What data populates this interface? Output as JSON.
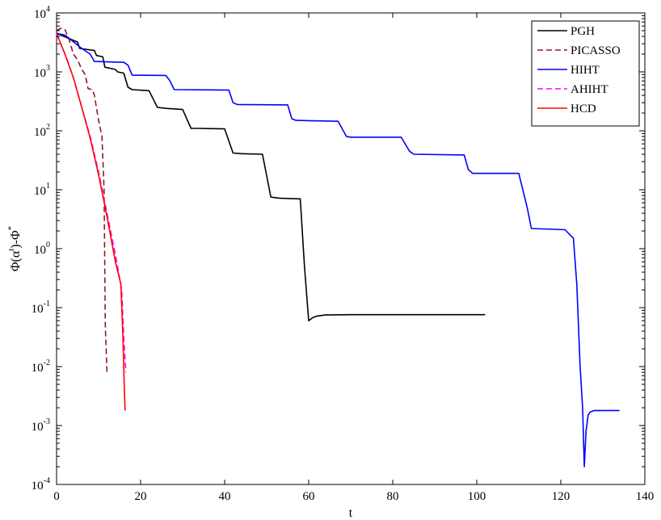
{
  "chart_data": {
    "type": "line",
    "title": "",
    "xlabel": "t",
    "ylabel": "Φ(α^t)-Φ^*",
    "y_scale": "log",
    "xlim": [
      0,
      140
    ],
    "ylim": [
      0.0001,
      10000
    ],
    "x_ticks": [
      "0",
      "20",
      "40",
      "60",
      "80",
      "100",
      "120",
      "140"
    ],
    "y_ticks": [
      {
        "base": "10",
        "exp": "4"
      },
      {
        "base": "10",
        "exp": "3"
      },
      {
        "base": "10",
        "exp": "2"
      },
      {
        "base": "10",
        "exp": "1"
      },
      {
        "base": "10",
        "exp": "0"
      },
      {
        "base": "10",
        "exp": "-1"
      },
      {
        "base": "10",
        "exp": "-2"
      },
      {
        "base": "10",
        "exp": "-3"
      },
      {
        "base": "10",
        "exp": "-4"
      }
    ],
    "legend_position": "top-right",
    "series": [
      {
        "name": "PGH",
        "color": "#000000",
        "dash": "solid",
        "x": [
          0,
          5,
          5.5,
          9,
          9.5,
          11,
          11.5,
          14,
          14.5,
          16,
          17,
          18,
          22,
          24,
          26,
          30,
          32,
          34,
          40,
          42,
          44,
          49,
          51,
          53,
          58,
          59,
          60,
          61,
          62,
          64,
          70,
          80,
          90,
          102
        ],
        "y": [
          4500,
          3200,
          2500,
          2300,
          1900,
          1800,
          1200,
          1100,
          1000,
          950,
          550,
          500,
          480,
          250,
          240,
          230,
          110,
          110,
          108,
          42,
          41,
          40,
          7.5,
          7.2,
          7,
          0.5,
          0.06,
          0.068,
          0.072,
          0.075,
          0.076,
          0.076,
          0.076,
          0.076
        ]
      },
      {
        "name": "PICASSO",
        "color": "#8b1a2b",
        "dash": "dashed",
        "x": [
          0,
          1,
          2,
          3,
          4,
          5,
          6,
          6.8,
          7.5,
          8.5,
          9,
          10,
          10.8,
          11.3,
          11.6,
          12
        ],
        "y": [
          5000,
          5500,
          5200,
          3500,
          2000,
          1600,
          1100,
          900,
          520,
          500,
          400,
          150,
          80,
          10,
          0.05,
          0.008
        ]
      },
      {
        "name": "HIHT",
        "color": "#0000ff",
        "dash": "solid",
        "x": [
          0,
          2,
          6,
          8,
          9,
          16,
          17,
          18,
          26,
          27,
          28,
          41,
          42,
          43,
          55,
          56,
          57,
          67,
          69,
          70,
          82,
          84,
          85,
          97,
          98,
          99,
          110,
          112,
          113,
          121,
          123,
          123.8,
          124.6,
          125.2,
          125.6,
          126,
          126.5,
          127,
          128,
          130,
          134
        ],
        "y": [
          4500,
          4200,
          2500,
          2000,
          1500,
          1450,
          1300,
          880,
          870,
          700,
          500,
          490,
          300,
          280,
          275,
          160,
          150,
          145,
          80,
          78,
          78,
          45,
          40,
          39,
          22,
          19,
          19,
          5,
          2.2,
          2.1,
          1.5,
          0.25,
          0.01,
          0.002,
          0.0002,
          0.0008,
          0.0015,
          0.0017,
          0.0018,
          0.0018,
          0.0018
        ]
      },
      {
        "name": "AHIHT",
        "color": "#ff00ff",
        "dash": "dashed",
        "x": [
          0,
          2,
          4,
          6,
          8,
          10,
          12,
          14,
          15.5,
          16,
          16.5
        ],
        "y": [
          4400,
          2000,
          800,
          250,
          80,
          20,
          4,
          0.8,
          0.2,
          0.03,
          0.008
        ]
      },
      {
        "name": "HCD",
        "color": "#ff0000",
        "dash": "solid",
        "x": [
          0,
          2,
          4,
          6,
          8,
          10,
          12,
          14,
          15.3,
          15.8,
          16.1,
          16.3
        ],
        "y": [
          4500,
          2000,
          800,
          250,
          75,
          18,
          3.5,
          0.6,
          0.25,
          0.03,
          0.005,
          0.0018
        ]
      }
    ]
  }
}
